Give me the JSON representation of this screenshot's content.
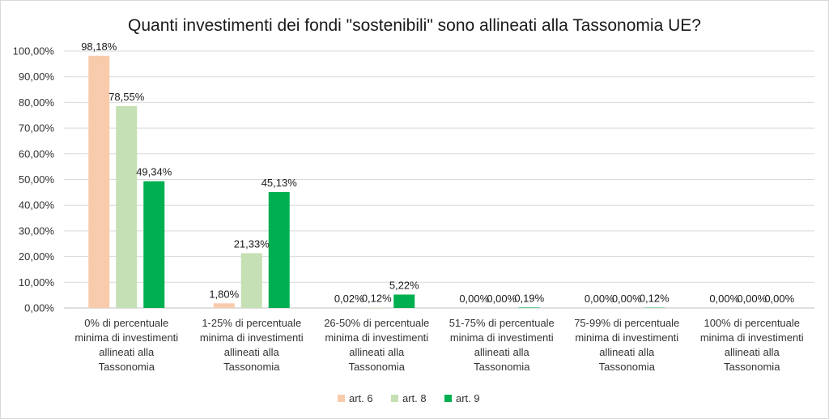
{
  "chart_data": {
    "type": "bar",
    "title": "Quanti investimenti dei fondi \"sostenibili\" sono allineati alla Tassonomia UE?",
    "categories": [
      [
        "0% di percentuale",
        "minima di investimenti",
        "allineati alla",
        "Tassonomia"
      ],
      [
        "1-25% di percentuale",
        "minima di investimenti",
        "allineati alla",
        "Tassonomia"
      ],
      [
        "26-50% di percentuale",
        "minima di investimenti",
        "allineati alla",
        "Tassonomia"
      ],
      [
        "51-75% di percentuale",
        "minima di investimenti",
        "allineati alla",
        "Tassonomia"
      ],
      [
        "75-99% di percentuale",
        "minima di investimenti",
        "allineati alla",
        "Tassonomia"
      ],
      [
        "100% di percentuale",
        "minima di investimenti",
        "allineati alla",
        "Tassonomia"
      ]
    ],
    "series": [
      {
        "name": "art. 6",
        "color": "#f8cbad",
        "values": [
          98.18,
          1.8,
          0.02,
          0.0,
          0.0,
          0.0
        ],
        "labels": [
          "98,18%",
          "1,80%",
          "0,02%",
          "0,00%",
          "0,00%",
          "0,00%"
        ]
      },
      {
        "name": "art. 8",
        "color": "#c5e0b4",
        "values": [
          78.55,
          21.33,
          0.12,
          0.0,
          0.0,
          0.0
        ],
        "labels": [
          "78,55%",
          "21,33%",
          "0,12%",
          "0,00%",
          "0,00%",
          "0,00%"
        ]
      },
      {
        "name": "art. 9",
        "color": "#00b050",
        "values": [
          49.34,
          45.13,
          5.22,
          0.19,
          0.12,
          0.0
        ],
        "labels": [
          "49,34%",
          "45,13%",
          "5,22%",
          "0,19%",
          "0,12%",
          "0,00%"
        ]
      }
    ],
    "yticks": [
      "0,00%",
      "10,00%",
      "20,00%",
      "30,00%",
      "40,00%",
      "50,00%",
      "60,00%",
      "70,00%",
      "80,00%",
      "90,00%",
      "100,00%"
    ],
    "ylim": [
      0,
      100
    ],
    "grid": true,
    "legend": "bottom"
  }
}
